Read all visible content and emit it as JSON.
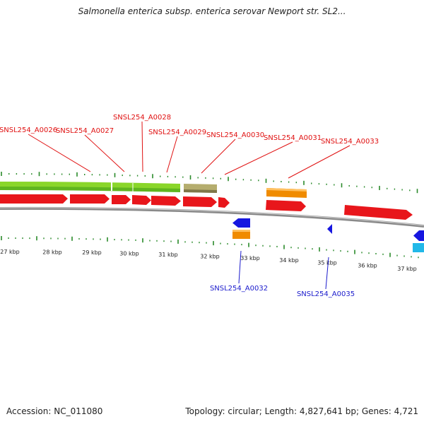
{
  "header": {
    "title": "Salmonella enterica subsp. enterica serovar Newport str. SL2..."
  },
  "footer": {
    "accession": "Accession: NC_011080",
    "summary": "Topology: circular; Length: 4,827,641 bp; Genes: 4,721"
  },
  "colors": {
    "forward_cds": "#e8161b",
    "reverse_cds": "#1616e0",
    "orange_feature": "#f08b00",
    "green_band": "#8ad62a",
    "olive_feature": "#b5ad6e",
    "cyan_feature": "#22b8e8",
    "label_top": "#e01010",
    "label_bottom": "#1a1acc",
    "tick": "#2a8a2a",
    "backbone": "#888888"
  },
  "axis": {
    "unit": "kbp",
    "ticks": [
      {
        "kbp": 27,
        "label": "27 kbp"
      },
      {
        "kbp": 28,
        "label": "28 kbp"
      },
      {
        "kbp": 29,
        "label": "29 kbp"
      },
      {
        "kbp": 30,
        "label": "30 kbp"
      },
      {
        "kbp": 31,
        "label": "31 kbp"
      },
      {
        "kbp": 32,
        "label": "32 kbp"
      },
      {
        "kbp": 33,
        "label": "33 kbp"
      },
      {
        "kbp": 34,
        "label": "34 kbp"
      },
      {
        "kbp": 35,
        "label": "35 kbp"
      },
      {
        "kbp": 36,
        "label": "36 kbp"
      },
      {
        "kbp": 37,
        "label": "37 kbp"
      }
    ]
  },
  "genes_forward": [
    {
      "label": "SNSL254_A0026",
      "start_kbp": 26.4,
      "end_kbp": 28.3
    },
    {
      "label": "SNSL254_A0027",
      "start_kbp": 28.4,
      "end_kbp": 29.5
    },
    {
      "label": "SNSL254_A0028",
      "start_kbp": 29.55,
      "end_kbp": 30.05
    },
    {
      "label": "SNSL254_A0029",
      "start_kbp": 30.1,
      "end_kbp": 30.65
    },
    {
      "label": "SNSL254_A0030",
      "start_kbp": 30.7,
      "end_kbp": 31.5
    },
    {
      "label": "SNSL254_A0031",
      "start_kbp": 31.55,
      "end_kbp": 32.45
    },
    {
      "label": "SNSL254_A0033",
      "start_kbp": 32.5,
      "end_kbp": 32.8
    },
    {
      "label": "",
      "start_kbp": 34.0,
      "end_kbp": 35.0
    },
    {
      "label": "",
      "start_kbp": 35.6,
      "end_kbp": 37.4
    }
  ],
  "genes_reverse": [
    {
      "label": "SNSL254_A0032",
      "start_kbp": 32.7,
      "end_kbp": 33.15
    },
    {
      "label": "SNSL254_A0035",
      "start_kbp": 35.0,
      "end_kbp": 35.12
    }
  ]
}
